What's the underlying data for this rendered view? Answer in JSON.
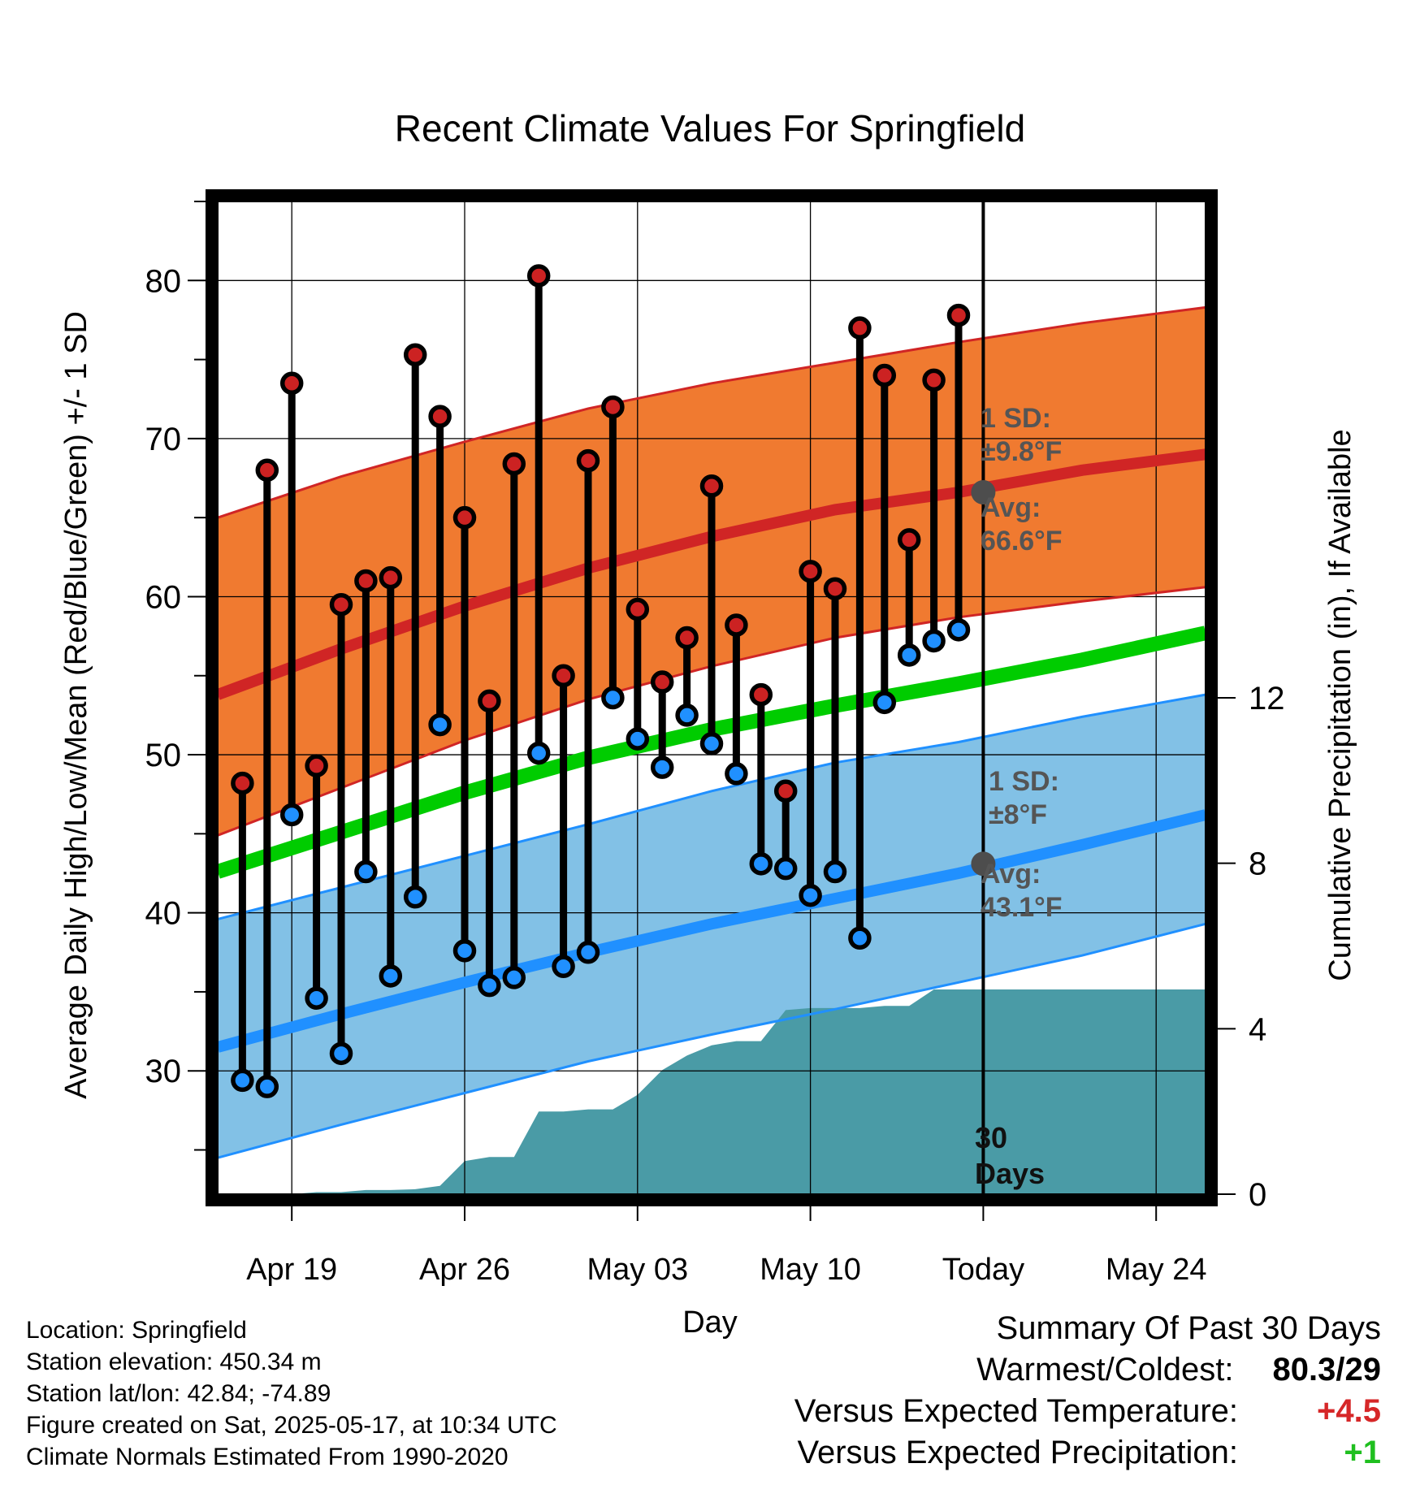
{
  "title": "Recent Climate Values For Springfield",
  "y_label_left": "Average Daily High/Low/Mean (Red/Blue/Green) +/- 1 SD",
  "y_label_right": "Cumulative Precipitation (in), If Available",
  "x_label": "Day",
  "colors": {
    "high_band": "#f07a30",
    "high_line": "#d02525",
    "low_band": "#82c1e6",
    "low_line": "#2090ff",
    "mean_line": "#00cc00",
    "precip": "#4a9ba6",
    "high_dot": "#cc2222",
    "low_dot": "#2090ff",
    "marker": "#4d4d4d"
  },
  "annotations": {
    "high_sd_label": "1 SD:",
    "high_sd_value": "±9.8°F",
    "high_avg_label": "Avg:",
    "high_avg_value": "66.6°F",
    "low_sd_label": "1 SD:",
    "low_sd_value": "±8°F",
    "low_avg_label": "Avg:",
    "low_avg_value": "43.1°F",
    "days_count": "30",
    "days_label": "Days"
  },
  "footer": {
    "location": "Location: Springfield",
    "elevation": "Station elevation: 450.34 m",
    "latlon": "Station lat/lon: 42.84; -74.89",
    "created": "Figure created on Sat, 2025-05-17, at 10:34 UTC",
    "normals": "Climate Normals Estimated From 1990-2020"
  },
  "summary": {
    "heading": "Summary Of Past 30 Days",
    "warm_cold_label": "Warmest/Coldest:",
    "warm_cold_value": "80.3/29",
    "temp_label": "Versus Expected Temperature:",
    "temp_value": "+4.5",
    "precip_label": "Versus Expected Precipitation:",
    "precip_value": "+1"
  },
  "chart_data": {
    "type": "line",
    "x_tick_labels": [
      "Apr 19",
      "Apr 26",
      "May 03",
      "May 10",
      "Today",
      "May 24"
    ],
    "x_ticks": [
      "2025-04-19",
      "2025-04-26",
      "2025-05-03",
      "2025-05-10",
      "2025-05-17",
      "2025-05-24"
    ],
    "x_range": [
      "2025-04-16",
      "2025-05-26"
    ],
    "today": "2025-05-17",
    "ylim_left": [
      22.2,
      85
    ],
    "yticks_left": [
      30,
      40,
      50,
      60,
      70,
      80
    ],
    "ylim_right": [
      0,
      24
    ],
    "yticks_right": [
      0,
      4,
      8,
      12
    ],
    "grid": true,
    "daily": {
      "dates": [
        "2025-04-17",
        "2025-04-18",
        "2025-04-19",
        "2025-04-20",
        "2025-04-21",
        "2025-04-22",
        "2025-04-23",
        "2025-04-24",
        "2025-04-25",
        "2025-04-26",
        "2025-04-27",
        "2025-04-28",
        "2025-04-29",
        "2025-04-30",
        "2025-05-01",
        "2025-05-02",
        "2025-05-03",
        "2025-05-04",
        "2025-05-05",
        "2025-05-06",
        "2025-05-07",
        "2025-05-08",
        "2025-05-09",
        "2025-05-10",
        "2025-05-11",
        "2025-05-12",
        "2025-05-13",
        "2025-05-14",
        "2025-05-15",
        "2025-05-16"
      ],
      "high": [
        48.2,
        68.0,
        73.5,
        49.3,
        59.5,
        61.0,
        61.2,
        75.3,
        71.4,
        65.0,
        53.4,
        68.4,
        80.3,
        55.0,
        68.6,
        72.0,
        59.2,
        54.6,
        57.4,
        67.0,
        58.2,
        53.8,
        47.7,
        61.6,
        60.5,
        77.0,
        74.0,
        63.6,
        73.7,
        77.8
      ],
      "low": [
        29.4,
        29.0,
        46.2,
        34.6,
        31.1,
        42.6,
        36.0,
        41.0,
        51.9,
        37.6,
        35.4,
        35.9,
        50.1,
        36.6,
        37.5,
        53.6,
        51.0,
        49.2,
        52.5,
        50.7,
        48.8,
        43.1,
        42.8,
        41.1,
        42.6,
        38.4,
        53.3,
        56.3,
        57.2,
        57.9
      ]
    },
    "normals": {
      "dates": [
        "2025-04-16",
        "2025-04-21",
        "2025-04-26",
        "2025-05-01",
        "2025-05-06",
        "2025-05-11",
        "2025-05-16",
        "2025-05-21",
        "2025-05-26"
      ],
      "high_avg": [
        53.8,
        56.7,
        59.4,
        61.8,
        63.8,
        65.5,
        66.6,
        68.0,
        69.0
      ],
      "high_upper": [
        65.0,
        67.6,
        69.8,
        71.9,
        73.5,
        74.8,
        76.1,
        77.3,
        78.3
      ],
      "high_lower": [
        44.9,
        47.9,
        50.9,
        53.5,
        55.6,
        57.4,
        58.7,
        59.7,
        60.6
      ],
      "mean": [
        42.6,
        45.1,
        47.6,
        49.8,
        51.6,
        53.1,
        54.5,
        56.0,
        57.7
      ],
      "low_avg": [
        31.5,
        33.6,
        35.6,
        37.5,
        39.3,
        40.9,
        42.5,
        44.3,
        46.2
      ],
      "low_upper": [
        39.6,
        41.6,
        43.6,
        45.6,
        47.7,
        49.5,
        50.8,
        52.4,
        53.8
      ],
      "low_lower": [
        24.5,
        26.6,
        28.6,
        30.6,
        32.3,
        33.9,
        35.6,
        37.3,
        39.3
      ]
    },
    "precipitation": {
      "dates": [
        "2025-04-17",
        "2025-04-18",
        "2025-04-19",
        "2025-04-20",
        "2025-04-21",
        "2025-04-22",
        "2025-04-23",
        "2025-04-24",
        "2025-04-25",
        "2025-04-26",
        "2025-04-27",
        "2025-04-28",
        "2025-04-29",
        "2025-04-30",
        "2025-05-01",
        "2025-05-02",
        "2025-05-03",
        "2025-05-04",
        "2025-05-05",
        "2025-05-06",
        "2025-05-07",
        "2025-05-08",
        "2025-05-09",
        "2025-05-10",
        "2025-05-11",
        "2025-05-12",
        "2025-05-13",
        "2025-05-14",
        "2025-05-15",
        "2025-05-16",
        "2025-05-17",
        "2025-05-26"
      ],
      "cumulative_in": [
        0.0,
        0.0,
        0.0,
        0.05,
        0.05,
        0.1,
        0.1,
        0.12,
        0.2,
        0.8,
        0.9,
        0.9,
        2.0,
        2.0,
        2.05,
        2.05,
        2.4,
        3.0,
        3.35,
        3.6,
        3.7,
        3.7,
        4.45,
        4.5,
        4.5,
        4.5,
        4.55,
        4.55,
        4.95,
        4.95,
        4.95,
        4.95
      ]
    }
  }
}
